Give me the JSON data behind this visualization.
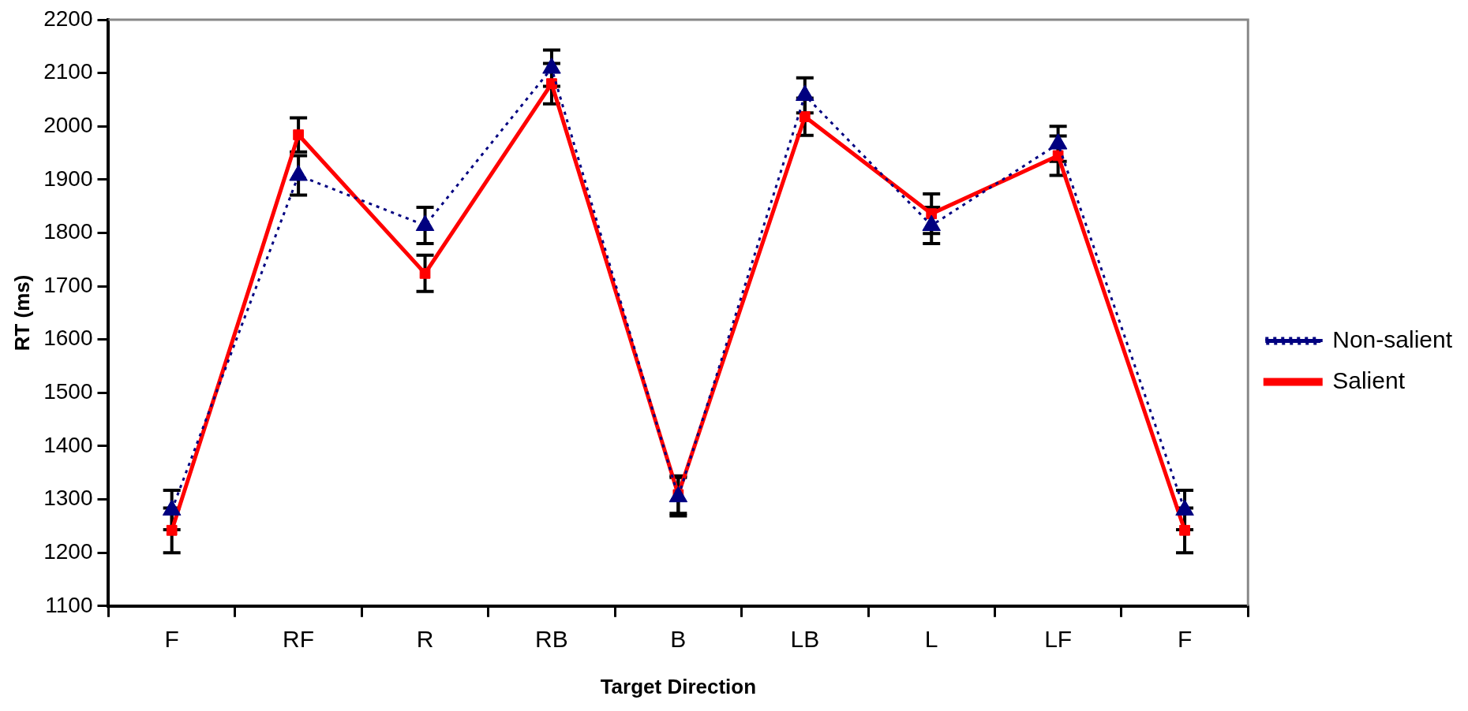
{
  "chart_data": {
    "type": "line",
    "xlabel": "Target Direction",
    "ylabel": "RT (ms)",
    "categories": [
      "F",
      "RF",
      "R",
      "RB",
      "B",
      "LB",
      "L",
      "LF",
      "F"
    ],
    "series": [
      {
        "name": "Non-salient",
        "color": "#000080",
        "marker": "triangle",
        "line_style": "dotted",
        "values": [
          1280,
          1908,
          1814,
          2109,
          1305,
          2058,
          1814,
          1967,
          1280
        ],
        "errors": [
          37,
          37,
          34,
          34,
          36,
          33,
          34,
          33,
          37
        ]
      },
      {
        "name": "Salient",
        "color": "#ff0000",
        "marker": "square",
        "line_style": "solid",
        "values": [
          1242,
          1984,
          1724,
          2080,
          1309,
          2018,
          1836,
          1945,
          1242
        ],
        "errors": [
          42,
          32,
          34,
          38,
          35,
          35,
          37,
          37,
          42
        ]
      }
    ],
    "ylim": [
      1100,
      2200
    ],
    "yticks": [
      1100,
      1200,
      1300,
      1400,
      1500,
      1600,
      1700,
      1800,
      1900,
      2000,
      2100,
      2200
    ],
    "grid": false,
    "legend": "right"
  }
}
